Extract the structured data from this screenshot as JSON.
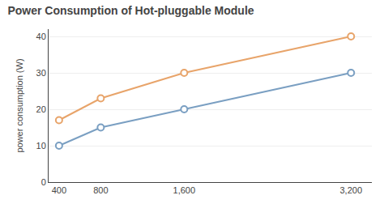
{
  "chart_data": {
    "type": "line",
    "title": "Power Consumption of Hot-pluggable Module",
    "ylabel": "power consumption (W)",
    "x": [
      400,
      800,
      1600,
      3200
    ],
    "series": [
      {
        "color": "#e8a46a",
        "values": [
          17,
          23,
          30,
          40
        ],
        "marker": "circle"
      },
      {
        "color": "#7a9fc2",
        "values": [
          10,
          15,
          20,
          30
        ],
        "marker": "circle"
      }
    ],
    "xlim": [
      300,
      3400
    ],
    "xticks": [
      400,
      800,
      {
        "value": 1600,
        "label": "1,600"
      },
      {
        "value": 3200,
        "label": "3,200"
      }
    ],
    "ylim": [
      0,
      42
    ],
    "yticks": [
      0,
      10,
      20,
      30,
      40
    ],
    "grid": true
  }
}
